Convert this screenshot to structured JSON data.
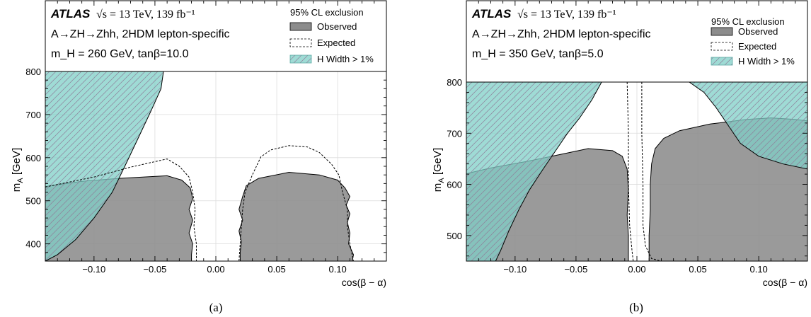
{
  "chart_data": [
    {
      "type": "area",
      "caption": "(a)",
      "experiment": "ATLAS",
      "energy_text": "√s = 13 TeV, 139 fb⁻¹",
      "process": "A→ZH→Zhh, 2HDM lepton-specific",
      "params": "m_H = 260 GeV, tanβ=10.0",
      "xlabel": "cos(β − α)",
      "ylabel": "m_A [GeV]",
      "xlim": [
        -0.14,
        0.14
      ],
      "ylim": [
        360,
        800
      ],
      "xticks": [
        -0.1,
        -0.05,
        0.0,
        0.05,
        0.1
      ],
      "xtick_labels": [
        "−0.10",
        "−0.05",
        "0.00",
        "0.05",
        "0.10"
      ],
      "yticks": [
        400,
        500,
        600,
        700,
        800
      ],
      "ytick_labels": [
        "400",
        "500",
        "600",
        "700",
        "800"
      ],
      "grid": true,
      "legend": {
        "title": "95% CL exclusion",
        "placement": "top-right",
        "entries": [
          "Observed",
          "Expected",
          "H Width > 1%"
        ]
      },
      "series": [
        {
          "name": "H Width > 1%",
          "style": "teal-hatched",
          "points": [
            [
              -0.14,
              360
            ],
            [
              -0.14,
              800
            ],
            [
              -0.043,
              800
            ],
            [
              -0.045,
              760
            ],
            [
              -0.053,
              710
            ],
            [
              -0.063,
              650
            ],
            [
              -0.073,
              590
            ],
            [
              -0.085,
              520
            ],
            [
              -0.1,
              460
            ],
            [
              -0.115,
              410
            ],
            [
              -0.13,
              375
            ],
            [
              -0.14,
              360
            ]
          ]
        },
        {
          "name": "Observed",
          "style": "gray-fill",
          "regions": [
            [
              [
                -0.14,
                360
              ],
              [
                -0.14,
                533
              ],
              [
                -0.11,
                545
              ],
              [
                -0.08,
                552
              ],
              [
                -0.04,
                558
              ],
              [
                -0.028,
                548
              ],
              [
                -0.021,
                530
              ],
              [
                -0.019,
                505
              ],
              [
                -0.022,
                480
              ],
              [
                -0.019,
                455
              ],
              [
                -0.022,
                425
              ],
              [
                -0.019,
                400
              ],
              [
                -0.02,
                375
              ],
              [
                -0.02,
                360
              ]
            ],
            [
              [
                0.02,
                360
              ],
              [
                0.02,
                380
              ],
              [
                0.021,
                405
              ],
              [
                0.019,
                430
              ],
              [
                0.022,
                455
              ],
              [
                0.019,
                480
              ],
              [
                0.022,
                510
              ],
              [
                0.025,
                535
              ],
              [
                0.035,
                552
              ],
              [
                0.06,
                566
              ],
              [
                0.085,
                560
              ],
              [
                0.1,
                548
              ],
              [
                0.106,
                530
              ],
              [
                0.11,
                510
              ],
              [
                0.107,
                490
              ],
              [
                0.11,
                470
              ],
              [
                0.108,
                450
              ],
              [
                0.11,
                425
              ],
              [
                0.109,
                400
              ],
              [
                0.113,
                375
              ],
              [
                0.112,
                360
              ]
            ]
          ]
        },
        {
          "name": "Expected",
          "style": "dashed",
          "regions": [
            [
              [
                -0.14,
                532
              ],
              [
                -0.1,
                555
              ],
              [
                -0.07,
                578
              ],
              [
                -0.04,
                597
              ],
              [
                -0.03,
                580
              ],
              [
                -0.022,
                555
              ],
              [
                -0.019,
                520
              ],
              [
                -0.017,
                480
              ],
              [
                -0.018,
                440
              ],
              [
                -0.016,
                400
              ],
              [
                -0.016,
                360
              ]
            ],
            [
              [
                0.019,
                360
              ],
              [
                0.02,
                400
              ],
              [
                0.021,
                440
              ],
              [
                0.022,
                480
              ],
              [
                0.024,
                520
              ],
              [
                0.03,
                560
              ],
              [
                0.037,
                602
              ],
              [
                0.045,
                618
              ],
              [
                0.06,
                628
              ],
              [
                0.075,
                625
              ],
              [
                0.085,
                612
              ],
              [
                0.095,
                585
              ],
              [
                0.101,
                560
              ],
              [
                0.104,
                520
              ],
              [
                0.108,
                480
              ],
              [
                0.108,
                440
              ],
              [
                0.11,
                400
              ],
              [
                0.113,
                360
              ]
            ]
          ]
        }
      ]
    },
    {
      "type": "area",
      "caption": "(b)",
      "experiment": "ATLAS",
      "energy_text": "√s = 13 TeV, 139 fb⁻¹",
      "process": "A→ZH→Zhh, 2HDM lepton-specific",
      "params": "m_H = 350 GeV, tanβ=5.0",
      "xlabel": "cos(β − α)",
      "ylabel": "m_A [GeV]",
      "xlim": [
        -0.14,
        0.14
      ],
      "ylim": [
        450,
        800
      ],
      "xticks": [
        -0.1,
        -0.05,
        0.0,
        0.05,
        0.1
      ],
      "xtick_labels": [
        "−0.10",
        "−0.05",
        "0.00",
        "0.05",
        "0.10"
      ],
      "yticks": [
        500,
        600,
        700,
        800
      ],
      "ytick_labels": [
        "500",
        "600",
        "700",
        "800"
      ],
      "grid": true,
      "legend": {
        "title": "95% CL exclusion",
        "placement": "top-right",
        "entries": [
          "Observed",
          "Expected",
          "H Width > 1%"
        ]
      },
      "series": [
        {
          "name": "H Width > 1%",
          "style": "teal-hatched",
          "regions": [
            [
              [
                -0.14,
                450
              ],
              [
                -0.14,
                800
              ],
              [
                -0.029,
                800
              ],
              [
                -0.037,
                765
              ],
              [
                -0.047,
                730
              ],
              [
                -0.057,
                700
              ],
              [
                -0.067,
                665
              ],
              [
                -0.077,
                630
              ],
              [
                -0.088,
                590
              ],
              [
                -0.097,
                550
              ],
              [
                -0.105,
                510
              ],
              [
                -0.112,
                470
              ],
              [
                -0.116,
                450
              ]
            ],
            [
              [
                0.043,
                800
              ],
              [
                0.14,
                800
              ],
              [
                0.14,
                630
              ],
              [
                0.12,
                640
              ],
              [
                0.1,
                655
              ],
              [
                0.085,
                680
              ],
              [
                0.075,
                715
              ],
              [
                0.065,
                750
              ],
              [
                0.055,
                780
              ]
            ]
          ]
        },
        {
          "name": "Observed",
          "style": "gray-fill",
          "regions": [
            [
              [
                -0.14,
                450
              ],
              [
                -0.14,
                621
              ],
              [
                -0.12,
                632
              ],
              [
                -0.09,
                645
              ],
              [
                -0.06,
                660
              ],
              [
                -0.04,
                670
              ],
              [
                -0.02,
                666
              ],
              [
                -0.012,
                655
              ],
              [
                -0.008,
                630
              ],
              [
                -0.007,
                590
              ],
              [
                -0.008,
                540
              ],
              [
                -0.007,
                500
              ],
              [
                -0.007,
                450
              ]
            ],
            [
              [
                0.01,
                450
              ],
              [
                0.01,
                500
              ],
              [
                0.011,
                550
              ],
              [
                0.011,
                600
              ],
              [
                0.012,
                640
              ],
              [
                0.015,
                670
              ],
              [
                0.022,
                690
              ],
              [
                0.035,
                705
              ],
              [
                0.06,
                718
              ],
              [
                0.09,
                727
              ],
              [
                0.11,
                730
              ],
              [
                0.13,
                727
              ],
              [
                0.14,
                724
              ],
              [
                0.14,
                450
              ]
            ]
          ]
        },
        {
          "name": "Expected",
          "style": "dashed",
          "regions": [
            [
              [
                -0.008,
                800
              ],
              [
                -0.007,
                700
              ],
              [
                -0.007,
                600
              ],
              [
                -0.006,
                520
              ],
              [
                -0.004,
                470
              ],
              [
                -0.003,
                450
              ]
            ],
            [
              [
                0.004,
                800
              ],
              [
                0.004,
                700
              ],
              [
                0.005,
                600
              ],
              [
                0.005,
                520
              ],
              [
                0.007,
                480
              ],
              [
                0.012,
                455
              ],
              [
                0.02,
                450
              ]
            ]
          ]
        }
      ]
    }
  ]
}
